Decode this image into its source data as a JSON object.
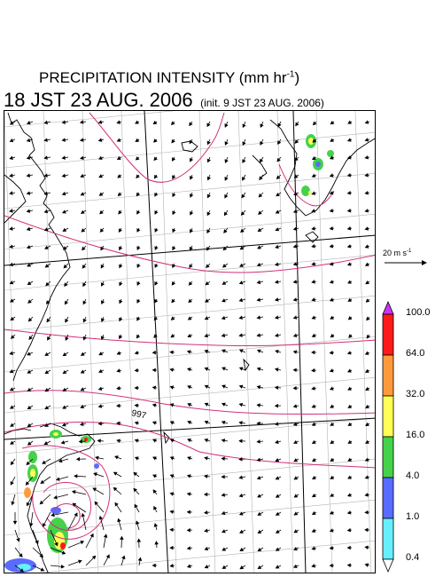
{
  "title": {
    "main": "PRECIPITATION INTENSITY (mm hr",
    "exponent": "-1",
    "close": ")"
  },
  "valid_time": "18 JST 23 AUG. 2006",
  "init_time": "(init. 9 JST 23 AUG. 2006)",
  "reference_vector": {
    "label": "20 m s",
    "exponent": "-1"
  },
  "colorbar": {
    "levels": [
      "0.4",
      "1.0",
      "4.0",
      "16.0",
      "32.0",
      "64.0",
      "100.0"
    ],
    "colors": [
      "#66f0ff",
      "#5a6bff",
      "#44d24a",
      "#ffff55",
      "#ff9a3c",
      "#ff1a1a",
      "#cc33ff"
    ],
    "under_color": "#ffffff",
    "over_color": "#cc33ff"
  },
  "map": {
    "contour_label": "997",
    "colors": {
      "coastline": "#000000",
      "graticule": "#b4b4b4",
      "isobar": "#d2307a",
      "vector": "#000000"
    }
  }
}
